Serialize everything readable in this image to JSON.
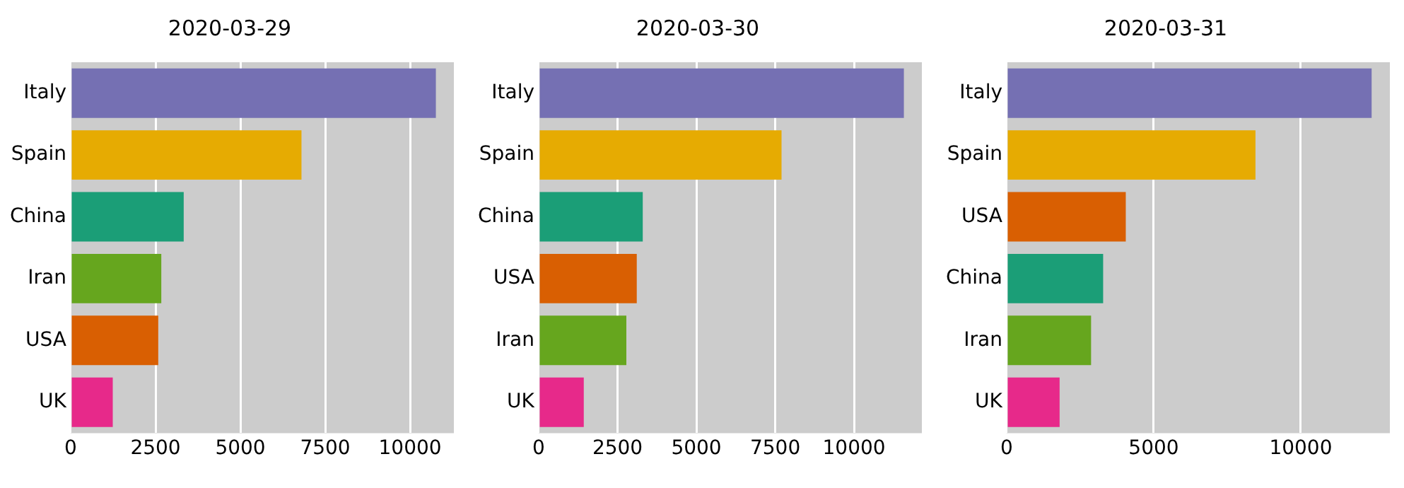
{
  "chart_data": [
    {
      "type": "bar",
      "orientation": "horizontal",
      "title": "2020-03-29",
      "categories": [
        "Italy",
        "Spain",
        "China",
        "Iran",
        "USA",
        "UK"
      ],
      "values": [
        10760,
        6800,
        3330,
        2670,
        2580,
        1240
      ],
      "colors": [
        "#7570b3",
        "#e6ab02",
        "#1b9e77",
        "#66a61e",
        "#d95f02",
        "#e7298a"
      ],
      "xlim": [
        0,
        11290
      ],
      "xticks": [
        0,
        2500,
        5000,
        7500,
        10000
      ],
      "grid": "x"
    },
    {
      "type": "bar",
      "orientation": "horizontal",
      "title": "2020-03-30",
      "categories": [
        "Italy",
        "Spain",
        "China",
        "USA",
        "Iran",
        "UK"
      ],
      "values": [
        11580,
        7700,
        3300,
        3110,
        2780,
        1430
      ],
      "colors": [
        "#7570b3",
        "#e6ab02",
        "#1b9e77",
        "#d95f02",
        "#66a61e",
        "#e7298a"
      ],
      "xlim": [
        0,
        12150
      ],
      "xticks": [
        0,
        2500,
        5000,
        7500,
        10000
      ],
      "grid": "x"
    },
    {
      "type": "bar",
      "orientation": "horizontal",
      "title": "2020-03-31",
      "categories": [
        "Italy",
        "Spain",
        "USA",
        "China",
        "Iran",
        "UK"
      ],
      "values": [
        12410,
        8460,
        4050,
        3280,
        2870,
        1800
      ],
      "colors": [
        "#7570b3",
        "#e6ab02",
        "#d95f02",
        "#1b9e77",
        "#66a61e",
        "#e7298a"
      ],
      "xlim": [
        0,
        13030
      ],
      "xticks": [
        0,
        5000,
        10000
      ],
      "grid": "x"
    }
  ]
}
